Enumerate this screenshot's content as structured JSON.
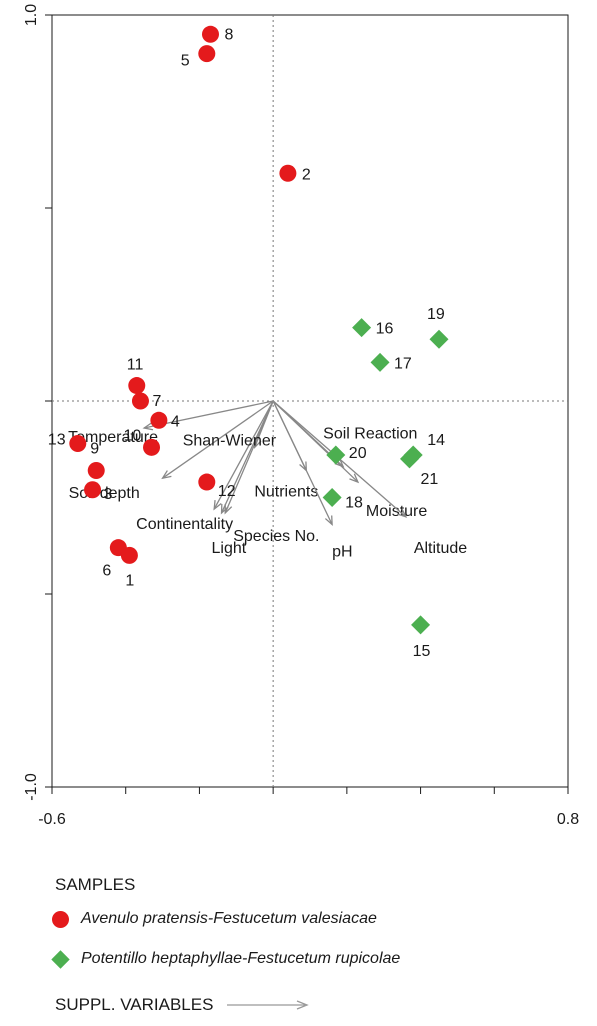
{
  "chart_data": {
    "type": "scatter",
    "xlim": [
      -0.6,
      0.8
    ],
    "ylim": [
      -1.0,
      1.0
    ],
    "x_tick_labels": [
      "-0.6",
      "0.8"
    ],
    "y_tick_labels": [
      "-1.0",
      "1.0"
    ],
    "series": [
      {
        "name": "Avenulo pratensis-Festucetum valesiacae",
        "color": "#e41a1c",
        "marker": "circle",
        "points": [
          {
            "label": "8",
            "x": -0.17,
            "y": 0.95
          },
          {
            "label": "5",
            "x": -0.18,
            "y": 0.9
          },
          {
            "label": "2",
            "x": 0.04,
            "y": 0.59
          },
          {
            "label": "11",
            "x": -0.37,
            "y": 0.04
          },
          {
            "label": "7",
            "x": -0.36,
            "y": 0.0
          },
          {
            "label": "4",
            "x": -0.31,
            "y": -0.05
          },
          {
            "label": "10",
            "x": -0.33,
            "y": -0.12
          },
          {
            "label": "13",
            "x": -0.53,
            "y": -0.11
          },
          {
            "label": "9",
            "x": -0.48,
            "y": -0.18
          },
          {
            "label": "3",
            "x": -0.49,
            "y": -0.23
          },
          {
            "label": "12",
            "x": -0.18,
            "y": -0.21
          },
          {
            "label": "6",
            "x": -0.42,
            "y": -0.38
          },
          {
            "label": "1",
            "x": -0.39,
            "y": -0.4
          }
        ]
      },
      {
        "name": "Potentillo heptaphyllae-Festucetum rupicolae",
        "color": "#4caf50",
        "marker": "diamond",
        "points": [
          {
            "label": "16",
            "x": 0.24,
            "y": 0.19
          },
          {
            "label": "19",
            "x": 0.45,
            "y": 0.16
          },
          {
            "label": "17",
            "x": 0.29,
            "y": 0.1
          },
          {
            "label": "20",
            "x": 0.17,
            "y": -0.14
          },
          {
            "label": "14",
            "x": 0.38,
            "y": -0.14
          },
          {
            "label": "21",
            "x": 0.37,
            "y": -0.15
          },
          {
            "label": "18",
            "x": 0.16,
            "y": -0.25
          },
          {
            "label": "15",
            "x": 0.4,
            "y": -0.58
          }
        ]
      }
    ],
    "supplementary_variables": {
      "color": "#888888",
      "vectors": [
        {
          "label": "Temperature",
          "x": -0.35,
          "y": -0.07
        },
        {
          "label": "Soil depth",
          "x": -0.3,
          "y": -0.2
        },
        {
          "label": "Continentality",
          "x": -0.16,
          "y": -0.28
        },
        {
          "label": "Light",
          "x": -0.14,
          "y": -0.29
        },
        {
          "label": "Species No.",
          "x": -0.13,
          "y": -0.29
        },
        {
          "label": "Shan-Wiener",
          "x": -0.05,
          "y": -0.12
        },
        {
          "label": "Nutrients",
          "x": 0.09,
          "y": -0.18
        },
        {
          "label": "pH",
          "x": 0.16,
          "y": -0.32
        },
        {
          "label": "Soil Reaction",
          "x": 0.19,
          "y": -0.17
        },
        {
          "label": "Moisture",
          "x": 0.23,
          "y": -0.21
        },
        {
          "label": "Altitude",
          "x": 0.36,
          "y": -0.3
        }
      ]
    }
  },
  "legend": {
    "samples_title": "SAMPLES",
    "supp_title": "SUPPL. VARIABLES"
  }
}
